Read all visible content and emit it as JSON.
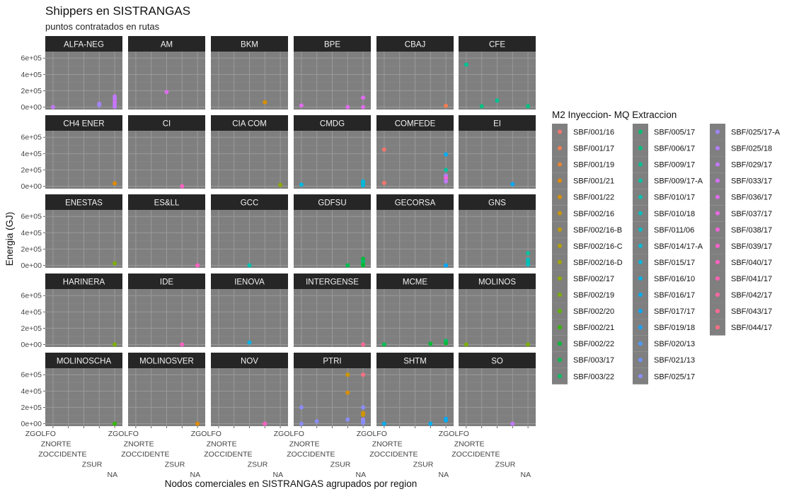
{
  "chart_data": {
    "type": "scatter",
    "title": "Shippers en SISTRANGAS",
    "subtitle": "puntos contratados en rutas",
    "xlabel": "Nodos comerciales en SISTRANGAS agrupados por region",
    "ylabel": "Energia (GJ)",
    "x_categories": [
      "ZGOLFO",
      "ZNORTE",
      "ZOCCIDENTE",
      "ZSUR",
      "NA"
    ],
    "ylim": [
      -30000,
      680000
    ],
    "y_ticks": [
      0,
      200000,
      400000,
      600000
    ],
    "y_tick_labels": [
      "0e+00",
      "2e+05",
      "4e+05",
      "6e+05"
    ],
    "grid": true,
    "panel_background": "#7f7f7f",
    "strip_background": "#262626",
    "legend": {
      "title": "M2 Inyeccion- MQ Extraccion",
      "placement": "right",
      "entries": [
        {
          "label": "SBF/001/16",
          "color": "#F8766D"
        },
        {
          "label": "SBF/001/17",
          "color": "#F27D52"
        },
        {
          "label": "SBF/001/19",
          "color": "#EA8331"
        },
        {
          "label": "SBF/001/21",
          "color": "#E18A00"
        },
        {
          "label": "SBF/001/22",
          "color": "#D89000"
        },
        {
          "label": "SBF/002/16",
          "color": "#CD9600"
        },
        {
          "label": "SBF/002/16-B",
          "color": "#C09B00"
        },
        {
          "label": "SBF/002/16-C",
          "color": "#B3A000"
        },
        {
          "label": "SBF/002/16-D",
          "color": "#A3A500"
        },
        {
          "label": "SBF/002/17",
          "color": "#92A900"
        },
        {
          "label": "SBF/002/19",
          "color": "#7CAE00"
        },
        {
          "label": "SBF/002/20",
          "color": "#5FB300"
        },
        {
          "label": "SBF/002/21",
          "color": "#34B700"
        },
        {
          "label": "SBF/002/22",
          "color": "#00BA38"
        },
        {
          "label": "SBF/003/17",
          "color": "#00BD4F"
        },
        {
          "label": "SBF/003/22",
          "color": "#00BF63"
        },
        {
          "label": "SBF/005/17",
          "color": "#00C074"
        },
        {
          "label": "SBF/006/17",
          "color": "#00C184"
        },
        {
          "label": "SBF/009/17",
          "color": "#00C293"
        },
        {
          "label": "SBF/009/17-A",
          "color": "#00C1A1"
        },
        {
          "label": "SBF/010/17",
          "color": "#00C0AF"
        },
        {
          "label": "SBF/010/18",
          "color": "#00BFBC"
        },
        {
          "label": "SBF/011/06",
          "color": "#00BDC7"
        },
        {
          "label": "SBF/014/17-A",
          "color": "#00BAD3"
        },
        {
          "label": "SBF/015/17",
          "color": "#00B6DE"
        },
        {
          "label": "SBF/016/10",
          "color": "#00B2E7"
        },
        {
          "label": "SBF/016/17",
          "color": "#00ADF0"
        },
        {
          "label": "SBF/017/17",
          "color": "#00A8F8"
        },
        {
          "label": "SBF/019/18",
          "color": "#1AA1FF"
        },
        {
          "label": "SBF/020/13",
          "color": "#4C9AFF"
        },
        {
          "label": "SBF/021/13",
          "color": "#6C93FF"
        },
        {
          "label": "SBF/025/17",
          "color": "#8B8CFF"
        },
        {
          "label": "SBF/025/17-A",
          "color": "#9F85FF"
        },
        {
          "label": "SBF/025/18",
          "color": "#B27EFF"
        },
        {
          "label": "SBF/029/17",
          "color": "#C278FC"
        },
        {
          "label": "SBF/033/17",
          "color": "#D272F6"
        },
        {
          "label": "SBF/036/17",
          "color": "#DF6CEE"
        },
        {
          "label": "SBF/037/17",
          "color": "#EB67E6"
        },
        {
          "label": "SBF/038/17",
          "color": "#F463DA"
        },
        {
          "label": "SBF/039/17",
          "color": "#FB61CE"
        },
        {
          "label": "SBF/040/17",
          "color": "#FF61C2"
        },
        {
          "label": "SBF/041/17",
          "color": "#FF63B3"
        },
        {
          "label": "SBF/042/17",
          "color": "#FF66A4"
        },
        {
          "label": "SBF/043/17",
          "color": "#FF6A94"
        },
        {
          "label": "SBF/044/17",
          "color": "#FC6F83"
        }
      ]
    },
    "facets": [
      {
        "name": "ALFA-NEG",
        "points": [
          {
            "x": "ZGOLFO",
            "y": 0,
            "color": "#C278FC"
          },
          {
            "x": "ZSUR",
            "y": 40000,
            "color": "#B27EFF"
          },
          {
            "x": "ZSUR",
            "y": 25000,
            "color": "#9F85FF"
          },
          {
            "x": "NA",
            "y": 130000,
            "color": "#C278FC"
          },
          {
            "x": "NA",
            "y": 100000,
            "color": "#C278FC"
          },
          {
            "x": "NA",
            "y": 60000,
            "color": "#D272F6"
          },
          {
            "x": "NA",
            "y": 30000,
            "color": "#C278FC"
          },
          {
            "x": "NA",
            "y": 5000,
            "color": "#C278FC"
          }
        ]
      },
      {
        "name": "AM",
        "points": [
          {
            "x": "ZOCCIDENTE",
            "y": 185000,
            "color": "#DF6CEE"
          }
        ]
      },
      {
        "name": "BKM",
        "points": [
          {
            "x": "ZSUR",
            "y": 60000,
            "color": "#D89000"
          }
        ]
      },
      {
        "name": "BPE",
        "points": [
          {
            "x": "ZGOLFO",
            "y": 20000,
            "color": "#DF6CEE"
          },
          {
            "x": "ZSUR",
            "y": 0,
            "color": "#DF6CEE"
          },
          {
            "x": "NA",
            "y": 115000,
            "color": "#DF6CEE"
          },
          {
            "x": "NA",
            "y": 0,
            "color": "#DF6CEE"
          }
        ]
      },
      {
        "name": "CBAJ",
        "points": [
          {
            "x": "NA",
            "y": 15000,
            "color": "#F27D52"
          }
        ]
      },
      {
        "name": "CFE",
        "points": [
          {
            "x": "ZGOLFO",
            "y": 520000,
            "color": "#00C293"
          },
          {
            "x": "ZNORTE",
            "y": 10000,
            "color": "#00C184"
          },
          {
            "x": "ZOCCIDENTE",
            "y": 80000,
            "color": "#00C293"
          },
          {
            "x": "NA",
            "y": 10000,
            "color": "#00C184"
          }
        ]
      },
      {
        "name": "CH4 ENER",
        "points": [
          {
            "x": "NA",
            "y": 35000,
            "color": "#E18A00"
          }
        ]
      },
      {
        "name": "CI",
        "points": [
          {
            "x": "ZSUR",
            "y": 0,
            "color": "#FF61C2"
          }
        ]
      },
      {
        "name": "CIA COM",
        "points": [
          {
            "x": "NA",
            "y": 15000,
            "color": "#92A900"
          }
        ]
      },
      {
        "name": "CMDG",
        "points": [
          {
            "x": "ZGOLFO",
            "y": 20000,
            "color": "#00B6DE"
          },
          {
            "x": "NA",
            "y": 60000,
            "color": "#00B6DE"
          },
          {
            "x": "NA",
            "y": 35000,
            "color": "#00BAD3"
          },
          {
            "x": "NA",
            "y": 10000,
            "color": "#00B6DE"
          }
        ]
      },
      {
        "name": "COMFEDE",
        "points": [
          {
            "x": "ZGOLFO",
            "y": 450000,
            "color": "#F8766D"
          },
          {
            "x": "ZGOLFO",
            "y": 40000,
            "color": "#F8766D"
          },
          {
            "x": "NA",
            "y": 390000,
            "color": "#00ADF0"
          },
          {
            "x": "NA",
            "y": 200000,
            "color": "#00C1A1"
          },
          {
            "x": "NA",
            "y": 130000,
            "color": "#B27EFF"
          },
          {
            "x": "NA",
            "y": 100000,
            "color": "#F463DA"
          },
          {
            "x": "NA",
            "y": 60000,
            "color": "#C278FC"
          }
        ]
      },
      {
        "name": "EI",
        "points": [
          {
            "x": "ZSUR",
            "y": 25000,
            "color": "#00A8F8"
          }
        ]
      },
      {
        "name": "ENESTAS",
        "points": [
          {
            "x": "NA",
            "y": 25000,
            "color": "#7CAE00"
          }
        ]
      },
      {
        "name": "ES&LL",
        "points": [
          {
            "x": "NA",
            "y": 0,
            "color": "#FF61C2"
          }
        ]
      },
      {
        "name": "GCC",
        "points": [
          {
            "x": "ZOCCIDENTE",
            "y": 0,
            "color": "#00C0AF"
          }
        ]
      },
      {
        "name": "GDFSU",
        "points": [
          {
            "x": "ZSUR",
            "y": 0,
            "color": "#00BD4F"
          },
          {
            "x": "NA",
            "y": 80000,
            "color": "#00BA38"
          },
          {
            "x": "NA",
            "y": 50000,
            "color": "#00BF63"
          },
          {
            "x": "NA",
            "y": 20000,
            "color": "#00BD4F"
          },
          {
            "x": "NA",
            "y": 0,
            "color": "#00BA38"
          }
        ]
      },
      {
        "name": "GECORSA",
        "points": [
          {
            "x": "NA",
            "y": 0,
            "color": "#00A8F8"
          }
        ]
      },
      {
        "name": "GNS",
        "points": [
          {
            "x": "NA",
            "y": 150000,
            "color": "#00C1A1"
          },
          {
            "x": "NA",
            "y": 70000,
            "color": "#00BFBC"
          },
          {
            "x": "NA",
            "y": 40000,
            "color": "#00C0AF"
          },
          {
            "x": "NA",
            "y": 10000,
            "color": "#00BFBC"
          }
        ]
      },
      {
        "name": "HARINERA",
        "points": [
          {
            "x": "NA",
            "y": 0,
            "color": "#7CAE00"
          }
        ]
      },
      {
        "name": "IDE",
        "points": [
          {
            "x": "ZSUR",
            "y": 0,
            "color": "#FF61C2"
          }
        ]
      },
      {
        "name": "IENOVA",
        "points": [
          {
            "x": "ZOCCIDENTE",
            "y": 25000,
            "color": "#00B2E7"
          }
        ]
      },
      {
        "name": "INTERGENSE",
        "points": [
          {
            "x": "NA",
            "y": 0,
            "color": "#FF6A94"
          }
        ]
      },
      {
        "name": "MCME",
        "points": [
          {
            "x": "ZGOLFO",
            "y": 0,
            "color": "#00BD4F"
          },
          {
            "x": "ZSUR",
            "y": 10000,
            "color": "#00BA38"
          },
          {
            "x": "NA",
            "y": 45000,
            "color": "#00BF63"
          },
          {
            "x": "NA",
            "y": 15000,
            "color": "#00BA38"
          }
        ]
      },
      {
        "name": "MOLINOS",
        "points": [
          {
            "x": "ZGOLFO",
            "y": 0,
            "color": "#7CAE00"
          },
          {
            "x": "NA",
            "y": 0,
            "color": "#7CAE00"
          }
        ]
      },
      {
        "name": "MOLINOSCHA",
        "points": [
          {
            "x": "NA",
            "y": 0,
            "color": "#34B700"
          }
        ]
      },
      {
        "name": "MOLINOSVER",
        "points": [
          {
            "x": "NA",
            "y": 0,
            "color": "#E18A00"
          }
        ]
      },
      {
        "name": "NOV",
        "points": [
          {
            "x": "ZSUR",
            "y": 0,
            "color": "#FF61C2"
          }
        ]
      },
      {
        "name": "PTRI",
        "points": [
          {
            "x": "ZGOLFO",
            "y": 200000,
            "color": "#8B8CFF"
          },
          {
            "x": "ZGOLFO",
            "y": 0,
            "color": "#8B8CFF"
          },
          {
            "x": "ZNORTE",
            "y": 30000,
            "color": "#8B8CFF"
          },
          {
            "x": "ZSUR",
            "y": 600000,
            "color": "#CD9600"
          },
          {
            "x": "ZSUR",
            "y": 380000,
            "color": "#D89000"
          },
          {
            "x": "ZSUR",
            "y": 50000,
            "color": "#8B8CFF"
          },
          {
            "x": "NA",
            "y": 600000,
            "color": "#FC6F83"
          },
          {
            "x": "NA",
            "y": 200000,
            "color": "#8B8CFF"
          },
          {
            "x": "NA",
            "y": 130000,
            "color": "#D89000"
          },
          {
            "x": "NA",
            "y": 110000,
            "color": "#CD9600"
          },
          {
            "x": "NA",
            "y": 50000,
            "color": "#9F85FF"
          },
          {
            "x": "NA",
            "y": 30000,
            "color": "#8B8CFF"
          },
          {
            "x": "NA",
            "y": 10000,
            "color": "#8B8CFF"
          }
        ]
      },
      {
        "name": "SHTM",
        "points": [
          {
            "x": "ZGOLFO",
            "y": 0,
            "color": "#00ADF0"
          },
          {
            "x": "ZSUR",
            "y": 0,
            "color": "#00ADF0"
          },
          {
            "x": "NA",
            "y": 60000,
            "color": "#00A8F8"
          },
          {
            "x": "NA",
            "y": 40000,
            "color": "#00ADF0"
          }
        ]
      },
      {
        "name": "SO",
        "points": [
          {
            "x": "ZSUR",
            "y": 0,
            "color": "#C278FC"
          }
        ]
      }
    ]
  }
}
